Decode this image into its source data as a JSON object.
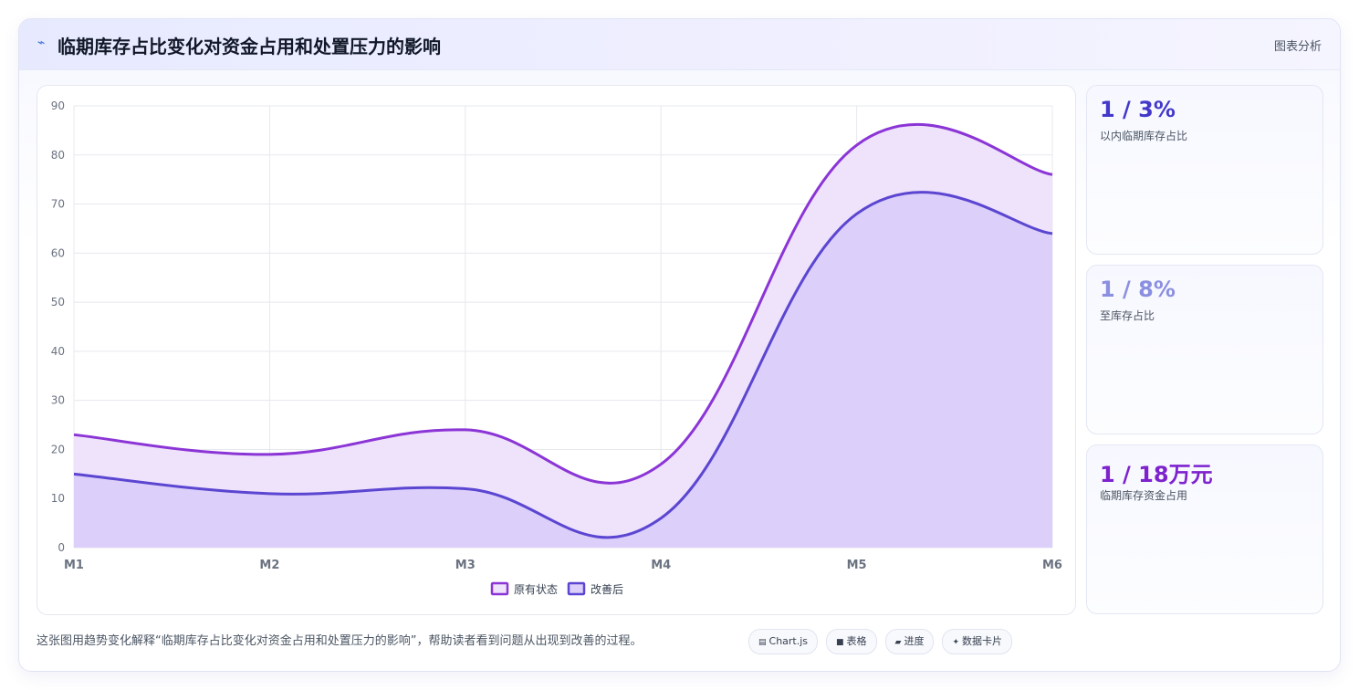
{
  "header": {
    "title": "临期库存占比变化对资金占用和处置压力的影响",
    "tag": "图表分析",
    "icon": "trend-line-icon"
  },
  "stats": [
    {
      "value": "1 / 3%",
      "label": "以内临期库存占比",
      "color": "#4338ca"
    },
    {
      "value": "1 / 8%",
      "label": "至库存占比",
      "color": "#8b8fe0"
    },
    {
      "value": "1 / 18万元",
      "label": "临期库存资金占用",
      "color": "#7e22ce"
    }
  ],
  "footer": {
    "text": "这张图用趋势变化解释“临期库存占比变化对资金占用和处置压力的影响”，帮助读者看到问题从出现到改善的过程。",
    "pills": [
      {
        "icon": "chart-icon",
        "glyph": "▤",
        "label": "Chart.js"
      },
      {
        "icon": "table-icon",
        "glyph": "■",
        "label": "表格"
      },
      {
        "icon": "progress-icon",
        "glyph": "▰",
        "label": "进度"
      },
      {
        "icon": "card-icon",
        "glyph": "✦",
        "label": "数据卡片"
      }
    ]
  },
  "chart_data": {
    "type": "area",
    "categories": [
      "M1",
      "M2",
      "M3",
      "M4",
      "M5",
      "M6"
    ],
    "ylim": [
      0,
      90
    ],
    "yticks": [
      0,
      10,
      20,
      30,
      40,
      50,
      60,
      70,
      80,
      90
    ],
    "grid": true,
    "legend_position": "bottom",
    "series": [
      {
        "name": "原有状态",
        "values": [
          23,
          19,
          24,
          17,
          82,
          76
        ],
        "color": "#8b35d6",
        "fill": "#efe2fb"
      },
      {
        "name": "改善后",
        "values": [
          15,
          11,
          12,
          6,
          68,
          64
        ],
        "color": "#5b46d1",
        "fill": "#dccffa"
      }
    ]
  }
}
